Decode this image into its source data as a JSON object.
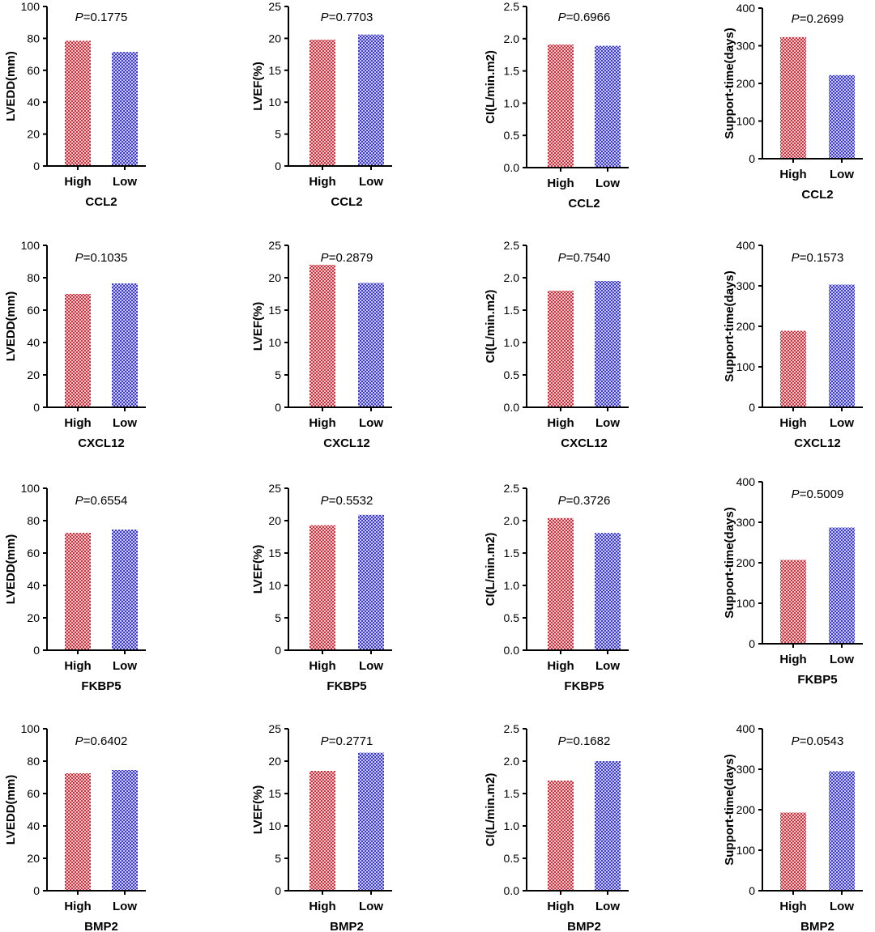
{
  "chart_data": [
    {
      "type": "bar",
      "gene": "CCL2",
      "ylabel": "LVEDD(mm)",
      "categories": [
        "High",
        "Low"
      ],
      "values": [
        78.5,
        71.5
      ],
      "colors": [
        "#c8323c",
        "#3c3cc8"
      ],
      "p_label": "P",
      "p_value": "=0.1775",
      "ylim": [
        0,
        100
      ],
      "yticks": [
        "0",
        "20",
        "40",
        "60",
        "80",
        "100"
      ]
    },
    {
      "type": "bar",
      "gene": "CCL2",
      "ylabel": "LVEF(%)",
      "categories": [
        "High",
        "Low"
      ],
      "values": [
        19.8,
        20.6
      ],
      "colors": [
        "#c8323c",
        "#3c3cc8"
      ],
      "p_label": "P",
      "p_value": "=0.7703",
      "ylim": [
        0,
        25
      ],
      "yticks": [
        "0",
        "5",
        "10",
        "15",
        "20",
        "25"
      ]
    },
    {
      "type": "bar",
      "gene": "CCL2",
      "ylabel": "CI(L/min.m2)",
      "categories": [
        "High",
        "Low"
      ],
      "values": [
        1.91,
        1.89
      ],
      "colors": [
        "#c8323c",
        "#3c3cc8"
      ],
      "p_label": "P",
      "p_value": "=0.6966",
      "ylim": [
        0,
        2.5
      ],
      "yticks": [
        "0.0",
        "0.5",
        "1.0",
        "1.5",
        "2.0",
        "2.5"
      ]
    },
    {
      "type": "bar",
      "gene": "CCL2",
      "ylabel": "Support-time(days)",
      "categories": [
        "High",
        "Low"
      ],
      "values": [
        323,
        222
      ],
      "colors": [
        "#c8323c",
        "#3c3cc8"
      ],
      "p_label": "P",
      "p_value": "=0.2699",
      "ylim": [
        0,
        400
      ],
      "yticks": [
        "0",
        "100",
        "200",
        "300",
        "400"
      ]
    },
    {
      "type": "bar",
      "gene": "CXCL12",
      "ylabel": "LVEDD(mm)",
      "categories": [
        "High",
        "Low"
      ],
      "values": [
        70,
        76.5
      ],
      "colors": [
        "#c8323c",
        "#3c3cc8"
      ],
      "p_label": "P",
      "p_value": "=0.1035",
      "ylim": [
        0,
        100
      ],
      "yticks": [
        "0",
        "20",
        "40",
        "60",
        "80",
        "100"
      ]
    },
    {
      "type": "bar",
      "gene": "CXCL12",
      "ylabel": "LVEF(%)",
      "categories": [
        "High",
        "Low"
      ],
      "values": [
        22.0,
        19.2
      ],
      "colors": [
        "#c8323c",
        "#3c3cc8"
      ],
      "p_label": "P",
      "p_value": "=0.2879",
      "ylim": [
        0,
        25
      ],
      "yticks": [
        "0",
        "5",
        "10",
        "15",
        "20",
        "25"
      ]
    },
    {
      "type": "bar",
      "gene": "CXCL12",
      "ylabel": "CI(L/min.m2)",
      "categories": [
        "High",
        "Low"
      ],
      "values": [
        1.8,
        1.95
      ],
      "colors": [
        "#c8323c",
        "#3c3cc8"
      ],
      "p_label": "P",
      "p_value": "=0.7540",
      "ylim": [
        0,
        2.5
      ],
      "yticks": [
        "0.0",
        "0.5",
        "1.0",
        "1.5",
        "2.0",
        "2.5"
      ]
    },
    {
      "type": "bar",
      "gene": "CXCL12",
      "ylabel": "Support-time(days)",
      "categories": [
        "High",
        "Low"
      ],
      "values": [
        189,
        303
      ],
      "colors": [
        "#c8323c",
        "#3c3cc8"
      ],
      "p_label": "P",
      "p_value": "=0.1573",
      "ylim": [
        0,
        400
      ],
      "yticks": [
        "0",
        "100",
        "200",
        "300",
        "400"
      ]
    },
    {
      "type": "bar",
      "gene": "FKBP5",
      "ylabel": "LVEDD(mm)",
      "categories": [
        "High",
        "Low"
      ],
      "values": [
        72.5,
        74.5
      ],
      "colors": [
        "#c8323c",
        "#3c3cc8"
      ],
      "p_label": "P",
      "p_value": "=0.6554",
      "ylim": [
        0,
        100
      ],
      "yticks": [
        "0",
        "20",
        "40",
        "60",
        "80",
        "100"
      ]
    },
    {
      "type": "bar",
      "gene": "FKBP5",
      "ylabel": "LVEF(%)",
      "categories": [
        "High",
        "Low"
      ],
      "values": [
        19.3,
        20.9
      ],
      "colors": [
        "#c8323c",
        "#3c3cc8"
      ],
      "p_label": "P",
      "p_value": "=0.5532",
      "ylim": [
        0,
        25
      ],
      "yticks": [
        "0",
        "5",
        "10",
        "15",
        "20",
        "25"
      ]
    },
    {
      "type": "bar",
      "gene": "FKBP5",
      "ylabel": "CI(L/min.m2)",
      "categories": [
        "High",
        "Low"
      ],
      "values": [
        2.04,
        1.81
      ],
      "colors": [
        "#c8323c",
        "#3c3cc8"
      ],
      "p_label": "P",
      "p_value": "=0.3726",
      "ylim": [
        0,
        2.5
      ],
      "yticks": [
        "0.0",
        "0.5",
        "1.0",
        "1.5",
        "2.0",
        "2.5"
      ]
    },
    {
      "type": "bar",
      "gene": "FKBP5",
      "ylabel": "Support-time(days)",
      "categories": [
        "High",
        "Low"
      ],
      "values": [
        207,
        287
      ],
      "colors": [
        "#c8323c",
        "#3c3cc8"
      ],
      "p_label": "P",
      "p_value": "=0.5009",
      "ylim": [
        0,
        400
      ],
      "yticks": [
        "0",
        "100",
        "200",
        "300",
        "400"
      ]
    },
    {
      "type": "bar",
      "gene": "BMP2",
      "ylabel": "LVEDD(mm)",
      "categories": [
        "High",
        "Low"
      ],
      "values": [
        72.5,
        74.5
      ],
      "colors": [
        "#c8323c",
        "#3c3cc8"
      ],
      "p_label": "P",
      "p_value": "=0.6402",
      "ylim": [
        0,
        100
      ],
      "yticks": [
        "0",
        "20",
        "40",
        "60",
        "80",
        "100"
      ]
    },
    {
      "type": "bar",
      "gene": "BMP2",
      "ylabel": "LVEF(%)",
      "categories": [
        "High",
        "Low"
      ],
      "values": [
        18.5,
        21.3
      ],
      "colors": [
        "#c8323c",
        "#3c3cc8"
      ],
      "p_label": "P",
      "p_value": "=0.2771",
      "ylim": [
        0,
        25
      ],
      "yticks": [
        "0",
        "5",
        "10",
        "15",
        "20",
        "25"
      ]
    },
    {
      "type": "bar",
      "gene": "BMP2",
      "ylabel": "CI(L/min.m2)",
      "categories": [
        "High",
        "Low"
      ],
      "values": [
        1.7,
        2.0
      ],
      "colors": [
        "#c8323c",
        "#3c3cc8"
      ],
      "p_label": "P",
      "p_value": "=0.1682",
      "ylim": [
        0,
        2.5
      ],
      "yticks": [
        "0.0",
        "0.5",
        "1.0",
        "1.5",
        "2.0",
        "2.5"
      ]
    },
    {
      "type": "bar",
      "gene": "BMP2",
      "ylabel": "Support-time(days)",
      "categories": [
        "High",
        "Low"
      ],
      "values": [
        193,
        295
      ],
      "colors": [
        "#c8323c",
        "#3c3cc8"
      ],
      "p_label": "P",
      "p_value": "=0.0543",
      "ylim": [
        0,
        400
      ],
      "yticks": [
        "0",
        "100",
        "200",
        "300",
        "400"
      ]
    }
  ]
}
